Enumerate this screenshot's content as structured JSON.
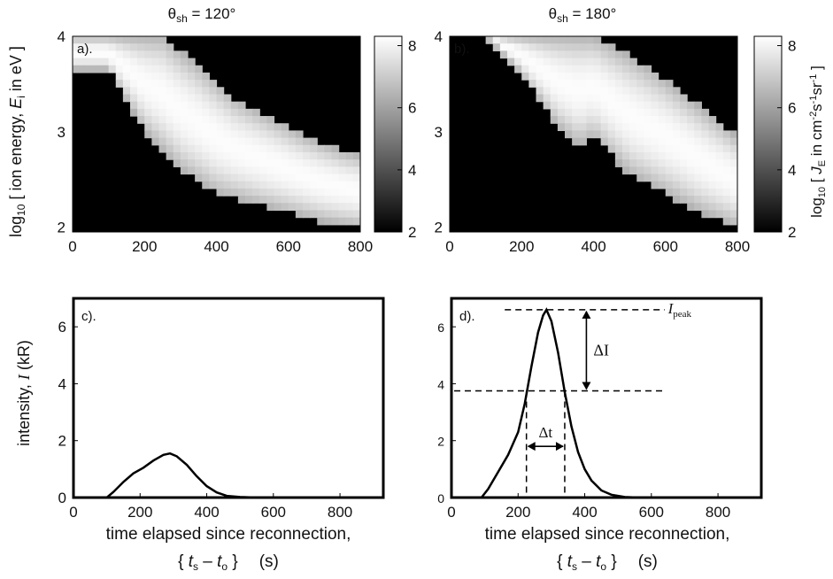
{
  "panels_top": [
    {
      "title_sym": "θ",
      "title_sub": "sh",
      "title_val": " = 120°",
      "label": "a)."
    },
    {
      "title_sym": "θ",
      "title_sub": "sh",
      "title_val": " = 180°",
      "label": "b)."
    }
  ],
  "top_ylabel": {
    "pre": "log",
    "sub": "10",
    "mid": " [ ion energy, ",
    "ital": "E",
    "isub": "i",
    "post": " in eV ]"
  },
  "top_yticks": [
    "2",
    "3",
    "4"
  ],
  "top_xticks": [
    "0",
    "200",
    "400",
    "600",
    "800"
  ],
  "colorbar_ticks": [
    "2",
    "4",
    "6",
    "8"
  ],
  "colorbar_label": {
    "pre": "log",
    "sub": "10",
    "mid": " [ ",
    "ital": "J",
    "isub": "E",
    "post1": " in cm",
    "sup1": "-2",
    "post2": "s",
    "sup2": "-1",
    "post3": "sr",
    "sup3": "-1",
    "post4": " ]"
  },
  "bottom_ylabel": {
    "pre": "intensity, ",
    "ital": "I",
    "post": "  (kR)"
  },
  "bottom_yticks": [
    "0",
    "2",
    "4",
    "6"
  ],
  "bottom_xticks": [
    "0",
    "200",
    "400",
    "600",
    "800"
  ],
  "xlabel_line1": "time elapsed since reconnection,",
  "xlabel_line2": {
    "open": "{ ",
    "t1": "t",
    "s1": "s",
    "minus": " – ",
    "t2": "t",
    "s2": "o",
    "close": " }",
    "unit": "(s)"
  },
  "panel_c_label": "c).",
  "panel_d_label": "d).",
  "annotations": {
    "ipeak": "I",
    "ipeak_sub": "peak",
    "delta_i": "ΔI",
    "delta_t": "Δt"
  },
  "colors": {
    "curve": "#000000",
    "axis": "#000000"
  },
  "chart_data": [
    {
      "type": "heatmap",
      "panel": "a",
      "xlim": [
        0,
        800
      ],
      "ylim": [
        1.95,
        4.0
      ],
      "zlim": [
        2,
        8.3
      ],
      "colormap": "gray",
      "band_lower_edge": {
        "x": [
          100,
          200,
          300,
          400,
          500,
          600,
          700,
          800
        ],
        "y": [
          3.65,
          3.0,
          2.6,
          2.35,
          2.25,
          2.15,
          2.05,
          2.0
        ]
      },
      "band_upper_edge": {
        "x": [
          0,
          150,
          250,
          350,
          450,
          550,
          650,
          750,
          800
        ],
        "y": [
          4.0,
          4.0,
          4.0,
          3.7,
          3.35,
          3.15,
          2.95,
          2.8,
          2.75
        ]
      },
      "peak_value": 8.2
    },
    {
      "type": "heatmap",
      "panel": "b",
      "xlim": [
        0,
        800
      ],
      "ylim": [
        1.95,
        4.0
      ],
      "zlim": [
        2,
        8.3
      ],
      "colormap": "gray",
      "band_lower_edge": {
        "x": [
          100,
          200,
          300,
          360,
          400,
          500,
          600,
          700,
          800
        ],
        "y": [
          4.0,
          3.6,
          3.05,
          2.85,
          2.95,
          2.55,
          2.35,
          2.15,
          2.0
        ]
      },
      "band_upper_edge": {
        "x": [
          100,
          200,
          300,
          400,
          500,
          600,
          700,
          800
        ],
        "y": [
          4.0,
          4.0,
          4.0,
          4.0,
          3.8,
          3.55,
          3.25,
          2.95
        ]
      },
      "peak_value": 8.2
    },
    {
      "type": "line",
      "panel": "c",
      "xlim": [
        0,
        930
      ],
      "ylim": [
        0,
        7
      ],
      "x": [
        100,
        120,
        150,
        180,
        210,
        240,
        270,
        290,
        310,
        340,
        370,
        400,
        430,
        460,
        500,
        550,
        600
      ],
      "y": [
        0,
        0.2,
        0.55,
        0.85,
        1.05,
        1.3,
        1.5,
        1.55,
        1.45,
        1.15,
        0.75,
        0.4,
        0.18,
        0.06,
        0.02,
        0,
        0
      ]
    },
    {
      "type": "line",
      "panel": "d",
      "xlim": [
        0,
        930
      ],
      "ylim": [
        0,
        7
      ],
      "x": [
        90,
        110,
        140,
        170,
        200,
        220,
        240,
        260,
        275,
        285,
        300,
        320,
        340,
        360,
        380,
        400,
        420,
        450,
        480,
        520,
        560
      ],
      "y": [
        0,
        0.3,
        0.9,
        1.5,
        2.3,
        3.3,
        4.6,
        5.8,
        6.4,
        6.6,
        6.2,
        5.1,
        3.7,
        2.5,
        1.6,
        1.0,
        0.6,
        0.25,
        0.1,
        0.02,
        0
      ],
      "ipeak": 6.6,
      "ihalf": 3.75,
      "t_left": 225,
      "t_right": 340
    }
  ]
}
